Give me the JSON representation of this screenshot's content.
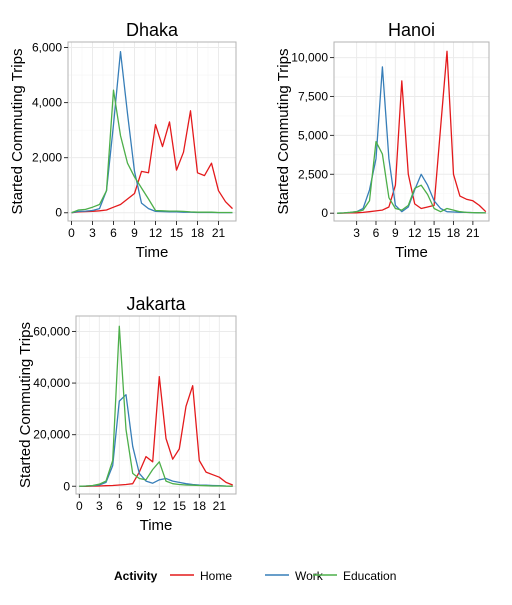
{
  "chart_data": {
    "type": "line",
    "legend": {
      "title": "Activity",
      "placement": "bottom",
      "entries": [
        {
          "label": "Home",
          "color": "#e41a1c"
        },
        {
          "label": "Work",
          "color": "#377eb8"
        },
        {
          "label": "Education",
          "color": "#4daf4a"
        }
      ]
    },
    "panels": [
      {
        "title": "Dhaka",
        "xlabel": "Time",
        "ylabel": "Started Commuting Trips",
        "xlim": [
          -0.5,
          23.5
        ],
        "ylim": [
          -300,
          6200
        ],
        "x_ticks": [
          0,
          3,
          6,
          9,
          12,
          15,
          18,
          21
        ],
        "y_ticks": [
          0,
          2000,
          4000,
          6000
        ],
        "y_tick_labels": [
          "0",
          "2,000",
          "4,000",
          "6,000"
        ],
        "x": [
          0,
          1,
          2,
          3,
          4,
          5,
          6,
          7,
          8,
          9,
          10,
          11,
          12,
          13,
          14,
          15,
          16,
          17,
          18,
          19,
          20,
          21,
          22,
          23
        ],
        "series": [
          {
            "name": "Home",
            "color": "#e41a1c",
            "values": [
              0,
              30,
              40,
              50,
              70,
              100,
              200,
              300,
              500,
              700,
              1500,
              1450,
              3200,
              2400,
              3300,
              1550,
              2200,
              3700,
              1450,
              1350,
              1800,
              800,
              400,
              150
            ]
          },
          {
            "name": "Work",
            "color": "#377eb8",
            "values": [
              0,
              50,
              60,
              80,
              150,
              800,
              3200,
              5850,
              3600,
              1500,
              350,
              150,
              50,
              40,
              30,
              30,
              20,
              20,
              10,
              10,
              10,
              5,
              5,
              5
            ]
          },
          {
            "name": "Education",
            "color": "#4daf4a",
            "values": [
              0,
              100,
              120,
              200,
              300,
              800,
              4450,
              2800,
              1800,
              1300,
              900,
              500,
              80,
              70,
              60,
              60,
              50,
              30,
              20,
              20,
              20,
              10,
              10,
              10
            ]
          }
        ]
      },
      {
        "title": "Hanoi",
        "xlabel": "Time",
        "ylabel": "Started Commuting Trips",
        "xlim": [
          -0.5,
          23.5
        ],
        "ylim": [
          -500,
          11000
        ],
        "x_ticks": [
          3,
          6,
          9,
          12,
          15,
          18,
          21
        ],
        "y_ticks": [
          0,
          2500,
          5000,
          7500,
          10000
        ],
        "y_tick_labels": [
          "0",
          "2,500",
          "5,000",
          "7,500",
          "10,000"
        ],
        "x": [
          0,
          1,
          2,
          3,
          4,
          5,
          6,
          7,
          8,
          9,
          10,
          11,
          12,
          13,
          14,
          15,
          16,
          17,
          18,
          19,
          20,
          21,
          22,
          23
        ],
        "series": [
          {
            "name": "Home",
            "color": "#e41a1c",
            "values": [
              0,
              10,
              20,
              30,
              50,
              100,
              150,
              200,
              400,
              1800,
              8500,
              2500,
              600,
              300,
              400,
              500,
              5500,
              10400,
              2500,
              1100,
              900,
              800,
              500,
              100
            ]
          },
          {
            "name": "Work",
            "color": "#377eb8",
            "values": [
              0,
              20,
              50,
              100,
              300,
              1500,
              3500,
              9400,
              3500,
              500,
              100,
              400,
              1500,
              2500,
              1800,
              800,
              300,
              100,
              80,
              60,
              50,
              40,
              30,
              20
            ]
          },
          {
            "name": "Education",
            "color": "#4daf4a",
            "values": [
              0,
              20,
              50,
              100,
              200,
              800,
              4600,
              3800,
              1000,
              300,
              200,
              500,
              1600,
              1800,
              1200,
              300,
              100,
              300,
              200,
              100,
              50,
              40,
              30,
              20
            ]
          }
        ]
      },
      {
        "title": "Jakarta",
        "xlabel": "Time",
        "ylabel": "Started Commuting Trips",
        "xlim": [
          -0.5,
          23.5
        ],
        "ylim": [
          -3000,
          66000
        ],
        "x_ticks": [
          0,
          3,
          6,
          9,
          12,
          15,
          18,
          21
        ],
        "y_ticks": [
          0,
          20000,
          40000,
          60000
        ],
        "y_tick_labels": [
          "0",
          "20,000",
          "40,000",
          "60,000"
        ],
        "x": [
          0,
          1,
          2,
          3,
          4,
          5,
          6,
          7,
          8,
          9,
          10,
          11,
          12,
          13,
          14,
          15,
          16,
          17,
          18,
          19,
          20,
          21,
          22,
          23
        ],
        "series": [
          {
            "name": "Home",
            "color": "#e41a1c",
            "values": [
              0,
              0,
              50,
              100,
              200,
              300,
              500,
              700,
              1000,
              5500,
              11500,
              9500,
              42500,
              18500,
              10500,
              14500,
              31000,
              39000,
              10000,
              5500,
              4500,
              3500,
              1500,
              500
            ]
          },
          {
            "name": "Work",
            "color": "#377eb8",
            "values": [
              0,
              100,
              200,
              500,
              1500,
              8000,
              33000,
              35500,
              15500,
              5000,
              2000,
              1200,
              2500,
              3000,
              2000,
              1500,
              1000,
              700,
              500,
              400,
              300,
              200,
              100,
              50
            ]
          },
          {
            "name": "Education",
            "color": "#4daf4a",
            "values": [
              0,
              100,
              300,
              800,
              2000,
              10000,
              62000,
              22000,
              5000,
              3000,
              2500,
              6500,
              9500,
              2000,
              1000,
              700,
              500,
              400,
              300,
              200,
              100,
              100,
              50,
              30
            ]
          }
        ]
      }
    ]
  }
}
